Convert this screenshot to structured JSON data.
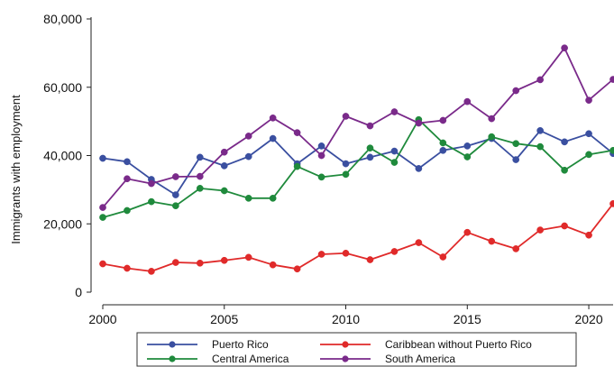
{
  "chart_data": {
    "type": "line",
    "title": "",
    "xlabel": "",
    "ylabel": "Immigrants with employment",
    "x": [
      2000,
      2001,
      2002,
      2003,
      2004,
      2005,
      2006,
      2007,
      2008,
      2009,
      2010,
      2011,
      2012,
      2013,
      2014,
      2015,
      2016,
      2017,
      2018,
      2019,
      2020,
      2021
    ],
    "xlim": [
      2000,
      2021
    ],
    "ylim": [
      0,
      80000
    ],
    "x_ticks": [
      2000,
      2005,
      2010,
      2015,
      2020
    ],
    "y_ticks": [
      0,
      20000,
      40000,
      60000,
      80000
    ],
    "x_tick_labels": [
      "2000",
      "2005",
      "2010",
      "2015",
      "2020"
    ],
    "y_tick_labels": [
      "0",
      "20,000",
      "40,000",
      "60,000",
      "80,000"
    ],
    "grid": false,
    "legend_position": "bottom",
    "series": [
      {
        "name": "Puerto Rico",
        "color": "#3a4fa0",
        "values": [
          39200,
          38200,
          33000,
          28500,
          39500,
          37000,
          39700,
          45000,
          37600,
          42800,
          37600,
          39500,
          41300,
          36200,
          41500,
          42800,
          45000,
          38800,
          47300,
          44000,
          46400,
          40600
        ]
      },
      {
        "name": "Caribbean without Puerto Rico",
        "color": "#e02a2a",
        "values": [
          8300,
          7000,
          6100,
          8700,
          8500,
          9300,
          10200,
          8000,
          6800,
          11100,
          11400,
          9500,
          11900,
          14500,
          10300,
          17500,
          14900,
          12700,
          18200,
          19400,
          16700,
          25900
        ]
      },
      {
        "name": "Central America",
        "color": "#1f8a3c",
        "values": [
          21900,
          23900,
          26500,
          25300,
          30400,
          29700,
          27500,
          27500,
          36800,
          33700,
          34500,
          42200,
          38000,
          50500,
          43700,
          39600,
          45500,
          43500,
          42600,
          35700,
          40300,
          41500
        ]
      },
      {
        "name": "South America",
        "color": "#7a2a8a",
        "values": [
          24800,
          33200,
          31800,
          33800,
          33900,
          41000,
          45700,
          51000,
          46700,
          40000,
          51500,
          48700,
          52800,
          49500,
          50300,
          55800,
          50800,
          59000,
          62200,
          71500,
          56200,
          62300
        ]
      }
    ]
  }
}
